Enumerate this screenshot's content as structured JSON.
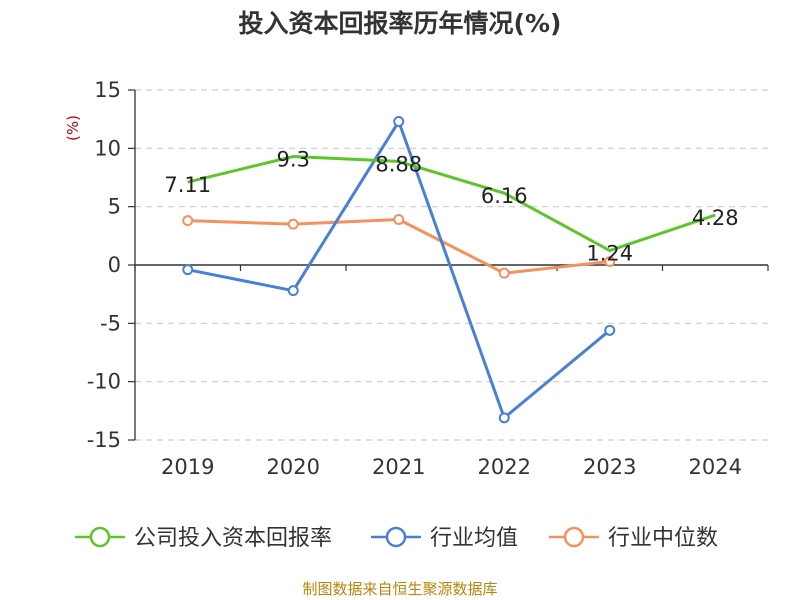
{
  "chart_data": {
    "type": "line",
    "title": "投入资本回报率历年情况(%)",
    "ylabel": "(%)",
    "categories": [
      "2019",
      "2020",
      "2021",
      "2022",
      "2023",
      "2024"
    ],
    "ylim": [
      -15,
      15
    ],
    "yticks": [
      15,
      10,
      5,
      0,
      -5,
      -10,
      -15
    ],
    "grid": true,
    "legend_position": "bottom",
    "series": [
      {
        "name": "公司投入资本回报率",
        "color": "#5cc52a",
        "values": [
          7.11,
          9.3,
          8.88,
          6.16,
          1.24,
          4.28
        ],
        "labels": [
          "7.11",
          "9.3",
          "8.88",
          "6.16",
          "1.24",
          "4.28"
        ]
      },
      {
        "name": "行业均值",
        "color": "#4a7fd6",
        "values": [
          -0.4,
          -2.2,
          12.3,
          -13.1,
          -5.6,
          null
        ]
      },
      {
        "name": "行业中位数",
        "color": "#f4915e",
        "values": [
          3.8,
          3.5,
          3.9,
          -0.7,
          0.3,
          null
        ]
      }
    ]
  },
  "source": "制图数据来自恒生聚源数据库"
}
